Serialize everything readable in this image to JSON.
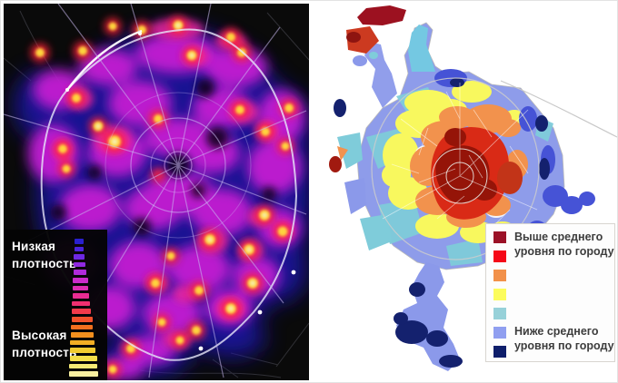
{
  "figure": {
    "description": "Two maps of Moscow: left kernel-density heatmap, right choropleth by district",
    "background": "#ffffff"
  },
  "left_panel": {
    "type": "density-heatmap",
    "background": "#0a0a0a",
    "palette": {
      "low": "#1d15b4",
      "mid": "#c41fd2",
      "high": "#ff2438",
      "peak": "#ffde3c",
      "road": "#ffffff"
    },
    "legend": {
      "low_label": [
        "Низкая",
        "плотность"
      ],
      "high_label": [
        "Высокая",
        "плотность"
      ],
      "text_color": "#ffffff",
      "box_background": "#040404",
      "bar_colors": [
        "#2a20cf",
        "#4b24dd",
        "#6e28e2",
        "#9029e0",
        "#b02adb",
        "#cb2bca",
        "#dd2cb2",
        "#e92c93",
        "#ef2f70",
        "#f23a4b",
        "#f2512b",
        "#f26f1e",
        "#f28f1e",
        "#f2ae24",
        "#f2cb30",
        "#f4de49",
        "#f6ea74",
        "#f8f0a0"
      ]
    }
  },
  "right_panel": {
    "type": "choropleth-map",
    "background": "#ffffff",
    "legend": {
      "above_label": [
        "Выше среднего",
        "уровня по городу"
      ],
      "below_label": [
        "Ниже среднего",
        "уровня по городу"
      ],
      "text_color": "#3d3d3d",
      "box_background": "#fdfdfd",
      "swatches": [
        "#9b1127",
        "#f50818",
        "#f2914a",
        "#fcfc5c",
        "#97d1d9",
        "#909ff0",
        "#0e1e6b"
      ]
    }
  }
}
